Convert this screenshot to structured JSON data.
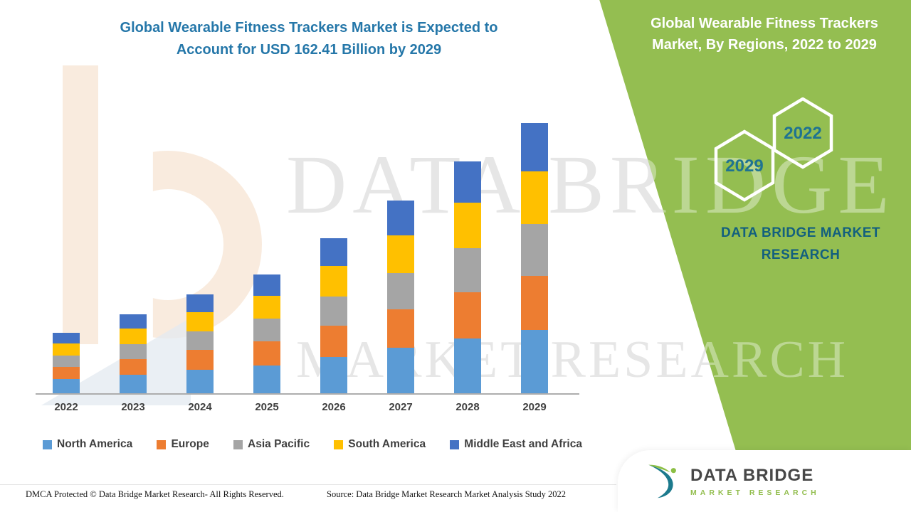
{
  "main": {
    "title_line1": "Global Wearable Fitness Trackers Market is Expected to",
    "title_line2": "Account for USD 162.41 Billion by 2029"
  },
  "right_panel": {
    "title_line1": "Global Wearable Fitness Trackers",
    "title_line2": "Market, By Regions, 2022 to 2029",
    "hexagons": [
      {
        "year": "2022"
      },
      {
        "year": "2029"
      }
    ],
    "brand_line1": "DATA BRIDGE MARKET",
    "brand_line2": "RESEARCH",
    "panel_color": "#94BE51",
    "accent_text_color": "#1F7391"
  },
  "watermark": {
    "line1": "DATA BRIDGE",
    "line2": "MARKET RESEARCH"
  },
  "logo_card": {
    "name": "DATA BRIDGE",
    "tagline": "MARKET RESEARCH"
  },
  "footer": {
    "dmca": "DMCA Protected © Data Bridge Market Research- All Rights Reserved.",
    "source": "Source: Data Bridge Market Research Market Analysis Study 2022"
  },
  "chart_data": {
    "type": "bar",
    "stacked": true,
    "title": "Global Wearable Fitness Trackers Market is Expected to Account for USD 162.41 Billion by 2029",
    "unit": "USD Billion",
    "categories": [
      "2022",
      "2023",
      "2024",
      "2025",
      "2026",
      "2027",
      "2028",
      "2029"
    ],
    "series": [
      {
        "name": "North America",
        "color": "#5B9BD5",
        "values": [
          8.6,
          11.2,
          14.0,
          16.8,
          21.9,
          27.2,
          32.8,
          38.2
        ]
      },
      {
        "name": "Europe",
        "color": "#ED7D31",
        "values": [
          7.3,
          9.5,
          11.9,
          14.3,
          18.6,
          23.2,
          27.9,
          32.5
        ]
      },
      {
        "name": "Asia Pacific",
        "color": "#A5A5A5",
        "values": [
          6.9,
          9.0,
          11.3,
          13.6,
          17.7,
          22.0,
          26.5,
          30.9
        ]
      },
      {
        "name": "South America",
        "color": "#FFC000",
        "values": [
          7.1,
          9.3,
          11.6,
          13.9,
          18.2,
          22.6,
          27.2,
          31.7
        ]
      },
      {
        "name": "Middle East and Africa",
        "color": "#4472C4",
        "values": [
          6.5,
          8.5,
          10.6,
          12.8,
          16.8,
          20.9,
          25.0,
          29.11
        ]
      }
    ],
    "totals_estimated": [
      36.4,
      47.5,
      59.4,
      71.4,
      93.2,
      115.9,
      139.4,
      162.41
    ],
    "key_value": "USD 162.41 Billion by 2029",
    "ylim": [
      0,
      170
    ],
    "grid": false,
    "y_axis_visible": false,
    "legend_position": "bottom"
  }
}
